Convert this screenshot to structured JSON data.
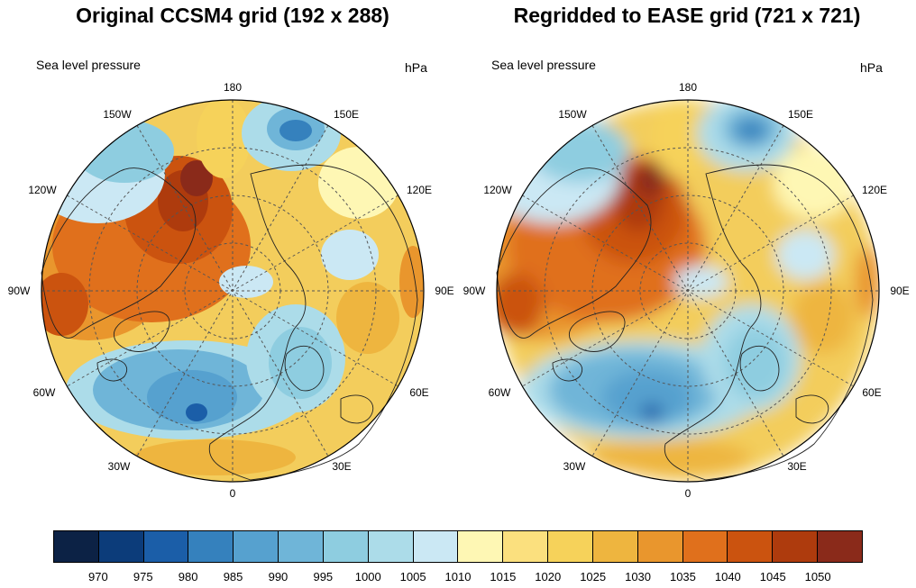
{
  "panels": [
    {
      "title": "Original CCSM4 grid (192 x 288)",
      "subtitle_left": "Sea level pressure",
      "subtitle_right": "hPa"
    },
    {
      "title": "Regridded to EASE grid (721 x 721)",
      "subtitle_left": "Sea level pressure",
      "subtitle_right": "hPa"
    }
  ],
  "longitude_labels": [
    "180",
    "150E",
    "120E",
    "90E",
    "60E",
    "30E",
    "0",
    "30W",
    "60W",
    "90W",
    "120W",
    "150W"
  ],
  "colorbar": {
    "levels": [
      "970",
      "975",
      "980",
      "985",
      "990",
      "995",
      "1000",
      "1005",
      "1010",
      "1015",
      "1020",
      "1025",
      "1030",
      "1035",
      "1040",
      "1045",
      "1050"
    ],
    "colors": [
      "#0c2245",
      "#0c3c7a",
      "#1b5ea8",
      "#3581bd",
      "#56a1cf",
      "#6fb5d8",
      "#8ecde0",
      "#acdce9",
      "#cbe8f4",
      "#fef7b4",
      "#fbe07e",
      "#f6d25a",
      "#eeb53f",
      "#e9962d",
      "#e0701c",
      "#cb530f",
      "#ae3b0d",
      "#8a2a1a"
    ]
  }
}
